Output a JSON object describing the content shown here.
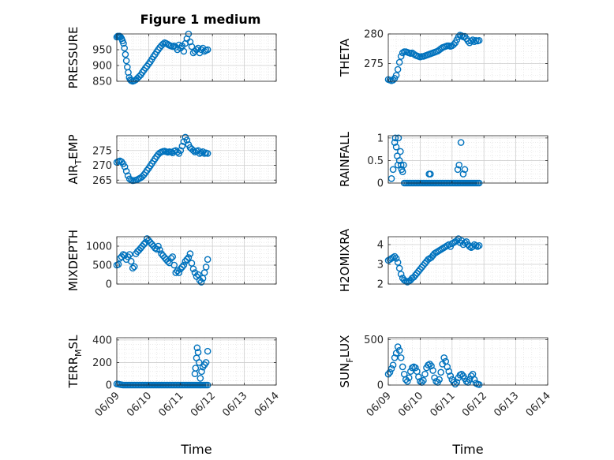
{
  "figure_title": "Figure 1 medium",
  "colors": {
    "marker": "#0072BD",
    "grid": "#dddddd",
    "axis": "#262626"
  },
  "chart_data": [
    {
      "type": "scatter",
      "ylabel": "PRESSURE",
      "title": "Figure 1 medium",
      "xlabel": "",
      "xlim": [
        "06/09",
        "06/14"
      ],
      "ylim": [
        850,
        1000
      ],
      "yticks": [
        850,
        900,
        950
      ],
      "xticks": [
        "06/09",
        "06/10",
        "06/11",
        "06/12",
        "06/13",
        "06/14"
      ],
      "grid": true,
      "minor_grid": true,
      "marker": "open-circle",
      "x": [
        0.0,
        0.03,
        0.06,
        0.09,
        0.12,
        0.15,
        0.18,
        0.21,
        0.24,
        0.27,
        0.3,
        0.33,
        0.36,
        0.39,
        0.42,
        0.45,
        0.5,
        0.55,
        0.6,
        0.65,
        0.7,
        0.75,
        0.8,
        0.85,
        0.9,
        0.95,
        1.0,
        1.05,
        1.1,
        1.15,
        1.2,
        1.25,
        1.3,
        1.35,
        1.4,
        1.45,
        1.5,
        1.55,
        1.6,
        1.65,
        1.7,
        1.75,
        1.8,
        1.85,
        1.9,
        1.95,
        2.0,
        2.05,
        2.1,
        2.15,
        2.2,
        2.25,
        2.3,
        2.35,
        2.4,
        2.45,
        2.5,
        2.55,
        2.6,
        2.65,
        2.7,
        2.75,
        2.8,
        2.85
      ],
      "y": [
        990,
        993,
        992,
        993,
        990,
        985,
        978,
        970,
        955,
        935,
        915,
        895,
        878,
        862,
        855,
        852,
        850,
        852,
        855,
        860,
        865,
        870,
        878,
        885,
        892,
        898,
        905,
        912,
        920,
        928,
        935,
        943,
        950,
        957,
        963,
        968,
        972,
        970,
        967,
        964,
        962,
        960,
        962,
        958,
        950,
        965,
        955,
        962,
        945,
        970,
        985,
        1000,
        975,
        960,
        940,
        945,
        950,
        955,
        940,
        950,
        955,
        945,
        948,
        950
      ]
    },
    {
      "type": "scatter",
      "ylabel": "THETA",
      "xlabel": "",
      "xlim": [
        "06/09",
        "06/14"
      ],
      "ylim": [
        272,
        280
      ],
      "yticks": [
        275,
        280
      ],
      "xticks": [
        "06/09",
        "06/10",
        "06/11",
        "06/12",
        "06/13",
        "06/14"
      ],
      "grid": true,
      "minor_grid": true,
      "marker": "open-circle",
      "x": [
        0.0,
        0.05,
        0.1,
        0.15,
        0.2,
        0.25,
        0.3,
        0.35,
        0.4,
        0.45,
        0.5,
        0.55,
        0.6,
        0.65,
        0.7,
        0.75,
        0.8,
        0.85,
        0.9,
        0.95,
        1.0,
        1.05,
        1.1,
        1.15,
        1.2,
        1.25,
        1.3,
        1.35,
        1.4,
        1.45,
        1.5,
        1.55,
        1.6,
        1.65,
        1.7,
        1.75,
        1.8,
        1.85,
        1.9,
        1.95,
        2.0,
        2.05,
        2.1,
        2.15,
        2.2,
        2.25,
        2.3,
        2.35,
        2.4,
        2.45,
        2.5,
        2.55,
        2.6,
        2.65,
        2.7,
        2.75,
        2.8,
        2.85
      ],
      "y": [
        272.3,
        272.2,
        272.1,
        272.2,
        272.5,
        273.0,
        274.0,
        275.2,
        276.2,
        276.8,
        277.0,
        277.0,
        276.9,
        276.8,
        276.7,
        276.8,
        276.6,
        276.4,
        276.3,
        276.2,
        276.1,
        276.2,
        276.2,
        276.3,
        276.4,
        276.5,
        276.6,
        276.7,
        276.8,
        276.9,
        277.0,
        277.1,
        277.3,
        277.5,
        277.7,
        277.8,
        277.9,
        278.0,
        278.0,
        277.9,
        278.0,
        278.2,
        278.5,
        279.0,
        279.5,
        279.8,
        279.7,
        279.5,
        279.6,
        279.2,
        278.8,
        278.5,
        278.8,
        279.0,
        278.7,
        278.9,
        278.8,
        278.9
      ]
    },
    {
      "type": "scatter",
      "ylabel": "AIR_TEMP",
      "ylabel_display": "AIR",
      "ylabel_sub": "T",
      "ylabel_rest": "EMP",
      "xlabel": "",
      "xlim": [
        "06/09",
        "06/14"
      ],
      "ylim": [
        264,
        280
      ],
      "yticks": [
        265,
        270,
        275
      ],
      "xticks": [
        "06/09",
        "06/10",
        "06/11",
        "06/12",
        "06/13",
        "06/14"
      ],
      "grid": true,
      "minor_grid": true,
      "marker": "open-circle",
      "x": [
        0.0,
        0.05,
        0.1,
        0.15,
        0.2,
        0.25,
        0.3,
        0.35,
        0.4,
        0.45,
        0.5,
        0.55,
        0.6,
        0.65,
        0.7,
        0.75,
        0.8,
        0.85,
        0.9,
        0.95,
        1.0,
        1.05,
        1.1,
        1.15,
        1.2,
        1.25,
        1.3,
        1.35,
        1.4,
        1.45,
        1.5,
        1.55,
        1.6,
        1.65,
        1.7,
        1.75,
        1.8,
        1.85,
        1.9,
        1.95,
        2.0,
        2.05,
        2.1,
        2.15,
        2.2,
        2.25,
        2.3,
        2.35,
        2.4,
        2.45,
        2.5,
        2.55,
        2.6,
        2.65,
        2.7,
        2.75,
        2.8,
        2.85
      ],
      "y": [
        271.0,
        271.3,
        271.5,
        271.2,
        270.5,
        269.5,
        268.0,
        266.5,
        265.4,
        265.0,
        264.8,
        264.9,
        265.0,
        265.2,
        265.5,
        265.8,
        266.2,
        266.8,
        267.5,
        268.3,
        269.0,
        269.8,
        270.6,
        271.4,
        272.2,
        273.0,
        273.7,
        274.2,
        274.5,
        274.7,
        274.8,
        274.6,
        274.4,
        274.6,
        274.5,
        274.2,
        274.8,
        275.0,
        274.5,
        274.0,
        275.0,
        276.5,
        278.0,
        279.5,
        278.5,
        277.0,
        276.0,
        275.5,
        275.0,
        274.5,
        274.8,
        275.0,
        274.0,
        274.3,
        274.6,
        274.0,
        274.2,
        274.0
      ]
    },
    {
      "type": "scatter",
      "ylabel": "RAINFALL",
      "xlabel": "",
      "xlim": [
        "06/09",
        "06/14"
      ],
      "ylim": [
        0,
        1.05
      ],
      "yticks": [
        0,
        0.5,
        1
      ],
      "xticks": [
        "06/09",
        "06/10",
        "06/11",
        "06/12",
        "06/13",
        "06/14"
      ],
      "grid": true,
      "minor_grid": true,
      "marker": "open-circle",
      "x": [
        0.1,
        0.15,
        0.2,
        0.22,
        0.25,
        0.28,
        0.3,
        0.32,
        0.35,
        0.38,
        0.4,
        0.42,
        0.45,
        0.48,
        0.5,
        0.55,
        0.6,
        0.65,
        0.7,
        0.75,
        0.8,
        0.85,
        0.9,
        0.95,
        1.0,
        1.05,
        1.1,
        1.15,
        1.2,
        1.25,
        1.3,
        1.35,
        1.4,
        1.45,
        1.5,
        1.55,
        1.6,
        1.65,
        1.7,
        1.75,
        1.8,
        1.85,
        1.9,
        1.95,
        2.0,
        2.05,
        2.1,
        2.15,
        2.2,
        2.25,
        2.3,
        2.35,
        2.4,
        2.45,
        2.5,
        2.55,
        2.6,
        2.65,
        2.7,
        2.75,
        2.8,
        2.85,
        1.28,
        1.32,
        2.18,
        2.22,
        2.28,
        2.35,
        2.4
      ],
      "y": [
        0.1,
        0.3,
        0.9,
        1.0,
        0.8,
        0.6,
        0.4,
        1.0,
        0.5,
        0.7,
        0.4,
        0.3,
        0.25,
        0.4,
        0.0,
        0.0,
        0.0,
        0.0,
        0.0,
        0.0,
        0.0,
        0.0,
        0.0,
        0.0,
        0.0,
        0.0,
        0.0,
        0.0,
        0.0,
        0.0,
        0.0,
        0.0,
        0.0,
        0.0,
        0.0,
        0.0,
        0.0,
        0.0,
        0.0,
        0.0,
        0.0,
        0.0,
        0.0,
        0.0,
        0.0,
        0.0,
        0.0,
        0.0,
        0.0,
        0.0,
        0.0,
        0.0,
        0.0,
        0.0,
        0.0,
        0.0,
        0.0,
        0.0,
        0.0,
        0.0,
        0.0,
        0.0,
        0.2,
        0.2,
        0.3,
        0.4,
        0.9,
        0.2,
        0.3
      ]
    },
    {
      "type": "scatter",
      "ylabel": "MIXDEPTH",
      "xlabel": "",
      "xlim": [
        "06/09",
        "06/14"
      ],
      "ylim": [
        0,
        1250
      ],
      "yticks": [
        0,
        500,
        1000
      ],
      "xticks": [
        "06/09",
        "06/10",
        "06/11",
        "06/12",
        "06/13",
        "06/14"
      ],
      "grid": true,
      "minor_grid": true,
      "marker": "open-circle",
      "x": [
        0.0,
        0.05,
        0.1,
        0.15,
        0.2,
        0.25,
        0.3,
        0.35,
        0.4,
        0.45,
        0.5,
        0.55,
        0.6,
        0.65,
        0.7,
        0.75,
        0.8,
        0.85,
        0.9,
        0.95,
        1.0,
        1.05,
        1.1,
        1.15,
        1.2,
        1.25,
        1.3,
        1.35,
        1.4,
        1.45,
        1.5,
        1.55,
        1.6,
        1.65,
        1.7,
        1.75,
        1.8,
        1.85,
        1.9,
        1.95,
        2.0,
        2.05,
        2.1,
        2.15,
        2.2,
        2.25,
        2.3,
        2.35,
        2.4,
        2.45,
        2.5,
        2.55,
        2.6,
        2.65,
        2.7,
        2.75,
        2.8,
        2.85
      ],
      "y": [
        500,
        520,
        680,
        720,
        780,
        760,
        650,
        720,
        780,
        600,
        420,
        460,
        800,
        860,
        900,
        950,
        1000,
        1050,
        1100,
        1200,
        1150,
        1100,
        1050,
        1000,
        950,
        920,
        1000,
        900,
        800,
        750,
        700,
        650,
        600,
        560,
        680,
        720,
        500,
        300,
        350,
        300,
        400,
        450,
        500,
        600,
        650,
        700,
        800,
        550,
        400,
        300,
        200,
        250,
        100,
        50,
        150,
        300,
        450,
        650
      ]
    },
    {
      "type": "scatter",
      "ylabel": "H2OMIXRA",
      "xlabel": "",
      "xlim": [
        "06/09",
        "06/14"
      ],
      "ylim": [
        2,
        4.4
      ],
      "yticks": [
        2,
        3,
        4
      ],
      "xticks": [
        "06/09",
        "06/10",
        "06/11",
        "06/12",
        "06/13",
        "06/14"
      ],
      "grid": true,
      "minor_grid": true,
      "marker": "open-circle",
      "x": [
        0.0,
        0.05,
        0.1,
        0.15,
        0.2,
        0.25,
        0.3,
        0.35,
        0.4,
        0.45,
        0.5,
        0.55,
        0.6,
        0.65,
        0.7,
        0.75,
        0.8,
        0.85,
        0.9,
        0.95,
        1.0,
        1.05,
        1.1,
        1.15,
        1.2,
        1.25,
        1.3,
        1.35,
        1.4,
        1.45,
        1.5,
        1.55,
        1.6,
        1.65,
        1.7,
        1.75,
        1.8,
        1.85,
        1.9,
        1.95,
        2.0,
        2.05,
        2.1,
        2.15,
        2.2,
        2.25,
        2.3,
        2.35,
        2.4,
        2.45,
        2.5,
        2.55,
        2.6,
        2.65,
        2.7,
        2.75,
        2.8,
        2.85
      ],
      "y": [
        3.2,
        3.25,
        3.3,
        3.35,
        3.4,
        3.3,
        3.1,
        2.8,
        2.5,
        2.3,
        2.2,
        2.15,
        2.1,
        2.15,
        2.2,
        2.3,
        2.35,
        2.45,
        2.55,
        2.65,
        2.75,
        2.85,
        2.95,
        3.05,
        3.15,
        3.25,
        3.3,
        3.35,
        3.45,
        3.55,
        3.6,
        3.65,
        3.7,
        3.75,
        3.8,
        3.85,
        3.9,
        3.95,
        4.0,
        3.9,
        4.05,
        4.1,
        4.15,
        4.2,
        4.3,
        4.1,
        4.2,
        4.0,
        4.1,
        4.15,
        4.0,
        3.9,
        3.85,
        3.9,
        4.0,
        3.95,
        3.9,
        3.95
      ]
    },
    {
      "type": "scatter",
      "ylabel": "TERR_MSL",
      "ylabel_display": "TERR",
      "ylabel_sub": "M",
      "ylabel_rest": "SL",
      "xlabel": "Time",
      "xlim": [
        "06/09",
        "06/14"
      ],
      "ylim": [
        0,
        420
      ],
      "yticks": [
        0,
        200,
        400
      ],
      "xticks": [
        "06/09",
        "06/10",
        "06/11",
        "06/12",
        "06/13",
        "06/14"
      ],
      "grid": true,
      "minor_grid": true,
      "marker": "open-circle",
      "x": [
        0.0,
        0.05,
        0.1,
        0.15,
        0.2,
        0.25,
        0.3,
        0.35,
        0.4,
        0.45,
        0.5,
        0.55,
        0.6,
        0.65,
        0.7,
        0.75,
        0.8,
        0.85,
        0.9,
        0.95,
        1.0,
        1.05,
        1.1,
        1.15,
        1.2,
        1.25,
        1.3,
        1.35,
        1.4,
        1.45,
        1.5,
        1.55,
        1.6,
        1.65,
        1.7,
        1.75,
        1.8,
        1.85,
        1.9,
        1.95,
        2.0,
        2.05,
        2.1,
        2.15,
        2.2,
        2.25,
        2.3,
        2.35,
        2.4,
        2.45,
        2.5,
        2.55,
        2.6,
        2.65,
        2.7,
        2.75,
        2.8,
        2.85,
        2.45,
        2.47,
        2.5,
        2.52,
        2.55,
        2.58,
        2.62,
        2.66,
        2.7,
        2.75,
        2.8,
        2.85
      ],
      "y": [
        10,
        8,
        5,
        2,
        0,
        0,
        0,
        0,
        0,
        0,
        0,
        0,
        0,
        0,
        0,
        0,
        0,
        0,
        0,
        0,
        0,
        0,
        0,
        0,
        0,
        0,
        0,
        0,
        0,
        0,
        0,
        0,
        0,
        0,
        0,
        0,
        0,
        0,
        0,
        0,
        0,
        0,
        0,
        0,
        0,
        0,
        0,
        0,
        0,
        0,
        0,
        0,
        0,
        0,
        0,
        0,
        0,
        0,
        100,
        150,
        240,
        330,
        290,
        200,
        60,
        120,
        160,
        180,
        200,
        300
      ]
    },
    {
      "type": "scatter",
      "ylabel": "SUN_FLUX",
      "ylabel_display": "SUN",
      "ylabel_sub": "F",
      "ylabel_rest": "LUX",
      "xlabel": "Time",
      "xlim": [
        "06/09",
        "06/14"
      ],
      "ylim": [
        0,
        520
      ],
      "yticks": [
        0,
        500
      ],
      "xticks": [
        "06/09",
        "06/10",
        "06/11",
        "06/12",
        "06/13",
        "06/14"
      ],
      "grid": true,
      "minor_grid": true,
      "marker": "open-circle",
      "x": [
        0.0,
        0.05,
        0.1,
        0.15,
        0.2,
        0.25,
        0.3,
        0.35,
        0.4,
        0.45,
        0.5,
        0.55,
        0.6,
        0.65,
        0.7,
        0.75,
        0.8,
        0.85,
        0.9,
        0.95,
        1.0,
        1.05,
        1.1,
        1.15,
        1.2,
        1.25,
        1.3,
        1.35,
        1.4,
        1.45,
        1.5,
        1.55,
        1.6,
        1.65,
        1.7,
        1.75,
        1.8,
        1.85,
        1.9,
        1.95,
        2.0,
        2.05,
        2.1,
        2.15,
        2.2,
        2.25,
        2.3,
        2.35,
        2.4,
        2.45,
        2.5,
        2.55,
        2.6,
        2.65,
        2.7,
        2.75,
        2.8,
        2.85
      ],
      "y": [
        120,
        140,
        180,
        220,
        300,
        350,
        420,
        380,
        300,
        200,
        120,
        60,
        40,
        80,
        150,
        190,
        200,
        190,
        150,
        90,
        40,
        30,
        50,
        120,
        190,
        220,
        230,
        210,
        160,
        80,
        40,
        30,
        60,
        140,
        230,
        300,
        260,
        200,
        150,
        100,
        60,
        30,
        10,
        30,
        80,
        110,
        120,
        100,
        70,
        40,
        30,
        60,
        100,
        120,
        60,
        20,
        10,
        5
      ]
    }
  ]
}
